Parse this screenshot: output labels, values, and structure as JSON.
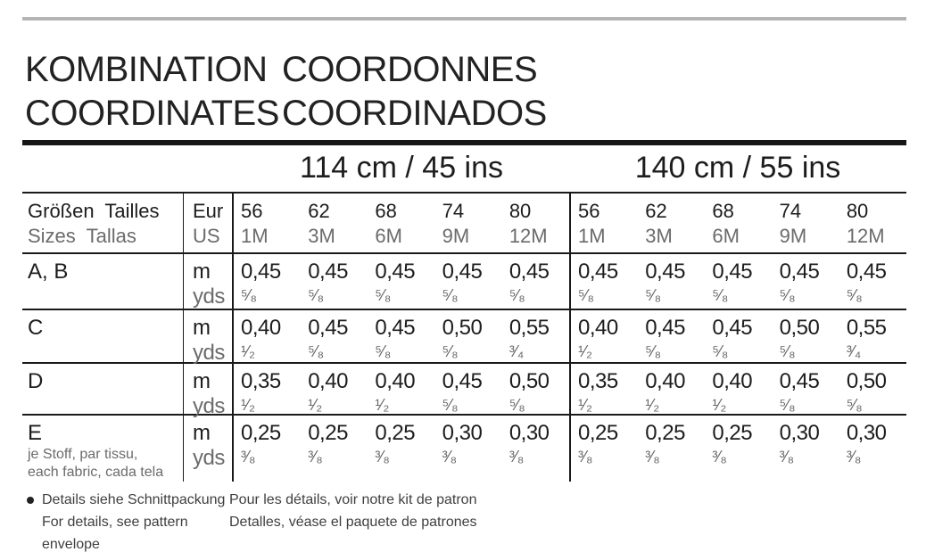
{
  "title": {
    "row1_left": "KOMBINATION",
    "row1_right": "COORDONNES",
    "row2_left": "COORDINATES",
    "row2_right": "COORDINADOS"
  },
  "fabric_widths": [
    {
      "label": "114 cm / 45 ins"
    },
    {
      "label": "140 cm / 55 ins"
    }
  ],
  "size_header": {
    "label_top": "Größen  Tailles",
    "label_bottom": "Sizes  Tallas",
    "unit_top": "Eur",
    "unit_bottom": "US",
    "eur": [
      "56",
      "62",
      "68",
      "74",
      "80"
    ],
    "us": [
      "1M",
      "3M",
      "6M",
      "9M",
      "12M"
    ]
  },
  "rows": [
    {
      "label": "A, B",
      "unit_top": "m",
      "unit_bottom": "yds",
      "w114": {
        "m": [
          "0,45",
          "0,45",
          "0,45",
          "0,45",
          "0,45"
        ],
        "yds": [
          "⁵⁄₈",
          "⁵⁄₈",
          "⁵⁄₈",
          "⁵⁄₈",
          "⁵⁄₈"
        ]
      },
      "w140": {
        "m": [
          "0,45",
          "0,45",
          "0,45",
          "0,45",
          "0,45"
        ],
        "yds": [
          "⁵⁄₈",
          "⁵⁄₈",
          "⁵⁄₈",
          "⁵⁄₈",
          "⁵⁄₈"
        ]
      }
    },
    {
      "label": "C",
      "unit_top": "m",
      "unit_bottom": "yds",
      "w114": {
        "m": [
          "0,40",
          "0,45",
          "0,45",
          "0,50",
          "0,55"
        ],
        "yds": [
          "¹⁄₂",
          "⁵⁄₈",
          "⁵⁄₈",
          "⁵⁄₈",
          "³⁄₄"
        ]
      },
      "w140": {
        "m": [
          "0,40",
          "0,45",
          "0,45",
          "0,50",
          "0,55"
        ],
        "yds": [
          "¹⁄₂",
          "⁵⁄₈",
          "⁵⁄₈",
          "⁵⁄₈",
          "³⁄₄"
        ]
      }
    },
    {
      "label": "D",
      "unit_top": "m",
      "unit_bottom": "yds",
      "w114": {
        "m": [
          "0,35",
          "0,40",
          "0,40",
          "0,45",
          "0,50"
        ],
        "yds": [
          "¹⁄₂",
          "¹⁄₂",
          "¹⁄₂",
          "⁵⁄₈",
          "⁵⁄₈"
        ]
      },
      "w140": {
        "m": [
          "0,35",
          "0,40",
          "0,40",
          "0,45",
          "0,50"
        ],
        "yds": [
          "¹⁄₂",
          "¹⁄₂",
          "¹⁄₂",
          "⁵⁄₈",
          "⁵⁄₈"
        ]
      }
    },
    {
      "label": "E",
      "sublabel_line1": "je Stoff, par tissu,",
      "sublabel_line2": "each fabric, cada tela",
      "unit_top": "m",
      "unit_bottom": "yds",
      "w114": {
        "m": [
          "0,25",
          "0,25",
          "0,25",
          "0,30",
          "0,30"
        ],
        "yds": [
          "³⁄₈",
          "³⁄₈",
          "³⁄₈",
          "³⁄₈",
          "³⁄₈"
        ]
      },
      "w140": {
        "m": [
          "0,25",
          "0,25",
          "0,25",
          "0,30",
          "0,30"
        ],
        "yds": [
          "³⁄₈",
          "³⁄₈",
          "³⁄₈",
          "³⁄₈",
          "³⁄₈"
        ]
      }
    }
  ],
  "footer": {
    "de": "Details siehe Schnittpackung",
    "en": "For details, see pattern envelope",
    "fr": "Pour les détails, voir notre kit de patron",
    "es": "Detalles, véase el paquete de patrones"
  },
  "colors": {
    "text_primary": "#1d1d1d",
    "text_secondary": "#6b6b6b",
    "rule_gray": "#b4b4b4",
    "rule_black": "#161616"
  }
}
